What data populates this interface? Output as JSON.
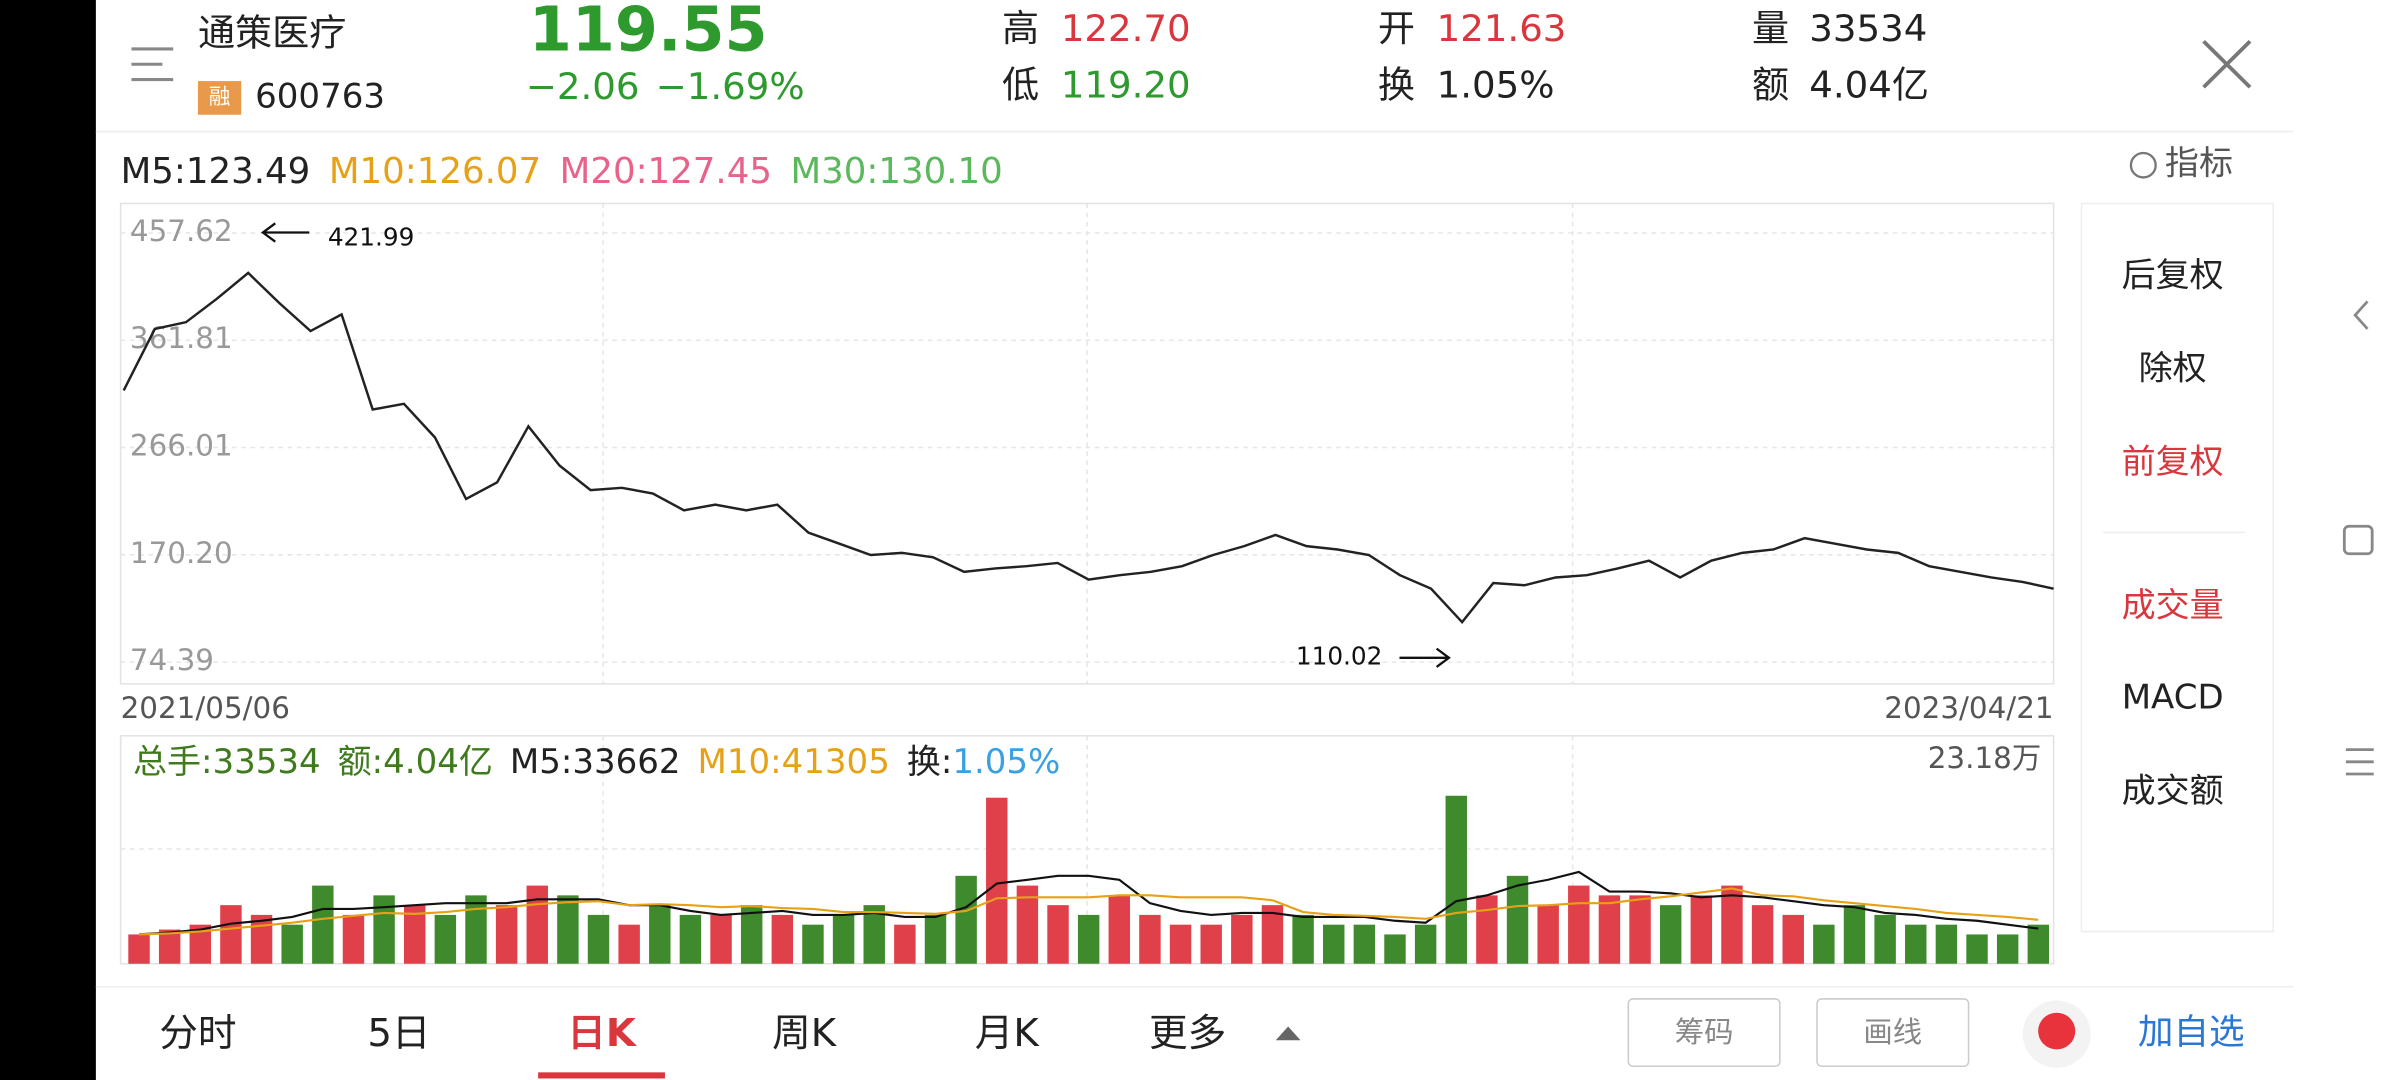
{
  "header": {
    "name": "通策医疗",
    "badge": "融",
    "code": "600763",
    "price": "119.55",
    "change": "−2.06",
    "change_pct": "−1.69%",
    "high_label": "高",
    "high": "122.70",
    "low_label": "低",
    "low": "119.20",
    "open_label": "开",
    "open": "121.63",
    "turnover_label": "换",
    "turnover": "1.05%",
    "volume_label": "量",
    "volume": "33534",
    "amount_label": "额",
    "amount": "4.04亿"
  },
  "ma_legend": [
    {
      "text": "M5:123.49",
      "color": "#222222"
    },
    {
      "text": "M10:126.07",
      "color": "#e6a117"
    },
    {
      "text": "M20:127.45",
      "color": "#e8628a"
    },
    {
      "text": "M30:130.10",
      "color": "#5cb85c"
    }
  ],
  "indicator": "指标",
  "chart_data": [
    {
      "type": "line",
      "color": "#222222",
      "ylim": [
        55,
        484
      ],
      "yticks": [
        457.62,
        361.81,
        266.01,
        {
          "value": 170.2,
          "label": "170.20"
        },
        74.39
      ],
      "categories": [
        "2021/05/06",
        null,
        null,
        null,
        null,
        null,
        null,
        null,
        null,
        null,
        null,
        null,
        null,
        null,
        null,
        null,
        null,
        null,
        null,
        null,
        null,
        null,
        null,
        null,
        null,
        null,
        null,
        null,
        null,
        null,
        null,
        null,
        null,
        null,
        null,
        null,
        null,
        null,
        null,
        null,
        null,
        null,
        null,
        null,
        null,
        null,
        null,
        null,
        null,
        null,
        null,
        null,
        null,
        null,
        null,
        null,
        null,
        null,
        null,
        null,
        null,
        null,
        "2023/04/21"
      ],
      "values": [
        317,
        372,
        378,
        399,
        421.99,
        395,
        370,
        385,
        300,
        305,
        275,
        220,
        235,
        285,
        250,
        228,
        230,
        225,
        210,
        215,
        210,
        215,
        190,
        180,
        170,
        172,
        168,
        155,
        158,
        160,
        163,
        148,
        152,
        155,
        160,
        170,
        178,
        188,
        178,
        175,
        170,
        152,
        140,
        110.02,
        145,
        143,
        150,
        152,
        158,
        165,
        150,
        165,
        172,
        175,
        185,
        180,
        175,
        172,
        160,
        155,
        150,
        146,
        140
      ],
      "annotations": [
        "421.99",
        "110.02"
      ]
    },
    {
      "type": "bar",
      "ylim": [
        0,
        23.18
      ],
      "yticks": [
        {
          "value": 23.18,
          "label": "23.18万"
        }
      ],
      "up_color": "#e0404a",
      "down_color": "#3f8a2c",
      "legend": [
        {
          "text": "总手:33534",
          "color": "#3f7a1c"
        },
        {
          "text": "额:4.04亿",
          "color": "#3f7a1c"
        },
        {
          "text": "M5:33662",
          "color": "#222222"
        },
        {
          "text": "M10:41305",
          "color": "#e6a117"
        },
        {
          "text": "换:",
          "color": "#222222"
        },
        {
          "text": "1.05%",
          "color": "#3aa0e0"
        }
      ],
      "values": [
        3,
        3.5,
        4,
        6,
        5,
        4,
        8,
        5,
        7,
        6,
        5,
        7,
        6,
        8,
        7,
        5,
        4,
        6,
        5,
        5,
        6,
        5,
        4,
        5,
        6,
        4,
        5,
        9,
        17,
        8,
        6,
        5,
        7,
        5,
        4,
        4,
        5,
        6,
        5,
        4,
        4,
        3,
        4,
        17.2,
        7,
        9,
        6,
        8,
        7,
        7,
        6,
        7,
        8,
        6,
        5,
        4,
        6,
        5,
        4,
        4,
        3,
        3,
        4
      ],
      "series": [
        {
          "name": "M5",
          "color": "#111111",
          "values": [
            3,
            3.2,
            3.5,
            4.1,
            4.4,
            4.8,
            5.6,
            5.6,
            5.8,
            6.0,
            6.2,
            6.2,
            6.2,
            6.6,
            6.6,
            6.6,
            6.0,
            6.0,
            5.4,
            5.0,
            5.2,
            5.4,
            5.0,
            5.0,
            5.2,
            4.8,
            4.8,
            5.8,
            8.2,
            8.6,
            9.0,
            9.0,
            8.6,
            6.2,
            5.4,
            5.0,
            5.2,
            5.2,
            4.8,
            4.8,
            4.8,
            4.4,
            4.2,
            6.4,
            7.0,
            8.0,
            8.6,
            9.4,
            7.4,
            7.4,
            7.2,
            6.8,
            7.0,
            6.8,
            6.4,
            6.0,
            5.8,
            5.2,
            5.0,
            4.6,
            4.4,
            4.0,
            3.6
          ]
        },
        {
          "name": "M10",
          "color": "#e6a117",
          "values": [
            3,
            3.1,
            3.3,
            3.6,
            3.9,
            4.2,
            4.6,
            4.9,
            5.2,
            5.1,
            5.3,
            5.6,
            5.8,
            6.1,
            6.3,
            6.4,
            6.0,
            6.1,
            6.0,
            5.8,
            5.9,
            5.7,
            5.6,
            5.3,
            5.3,
            5.2,
            5.1,
            5.4,
            6.7,
            6.8,
            6.8,
            6.8,
            7.0,
            7.0,
            6.8,
            6.8,
            6.8,
            6.5,
            5.3,
            5.0,
            4.9,
            4.8,
            4.6,
            5.2,
            5.5,
            5.9,
            6.0,
            6.2,
            6.2,
            6.6,
            6.9,
            7.3,
            7.7,
            7.0,
            6.9,
            6.5,
            6.2,
            5.9,
            5.6,
            5.2,
            5.0,
            4.8,
            4.5
          ]
        }
      ]
    }
  ],
  "side_menu": [
    "后复权",
    "除权",
    "前复权",
    "成交量",
    "MACD",
    "成交额"
  ],
  "tabs": [
    "分时",
    "5日",
    "日K",
    "周K",
    "月K",
    "更多"
  ],
  "buttons": [
    "筹码",
    "画线",
    "加自选"
  ]
}
